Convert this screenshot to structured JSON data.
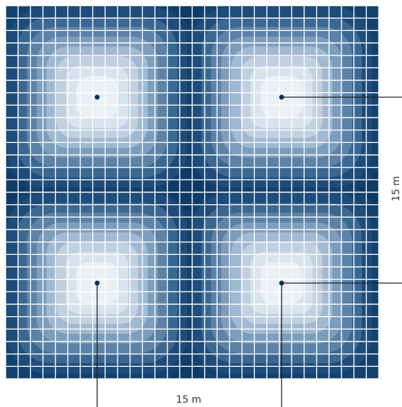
{
  "diagram": {
    "width_label": "15 m",
    "height_label": "15 m",
    "colors": {
      "outer": "#14426e",
      "zones": [
        "#1e4c7b",
        "#3b6891",
        "#5c82a8",
        "#7d9dbd",
        "#a1b9d1",
        "#c0d0e1",
        "#d9e3ee",
        "#eaf0f6"
      ],
      "grid_line": "#ffffff",
      "leader_line": "#222222",
      "marker": "#123052"
    },
    "grid_cells": 30,
    "luminaires": [
      {
        "name": "luminaire-top-left"
      },
      {
        "name": "luminaire-top-right"
      },
      {
        "name": "luminaire-bottom-left"
      },
      {
        "name": "luminaire-bottom-right"
      }
    ]
  }
}
